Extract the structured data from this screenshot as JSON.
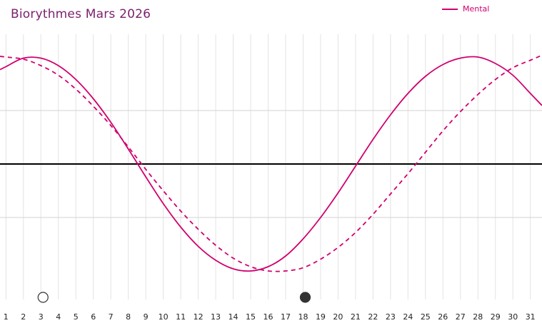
{
  "chart_data": {
    "type": "line",
    "title": "Biorythmes Mars 2026",
    "x": [
      1,
      2,
      3,
      4,
      5,
      6,
      7,
      8,
      9,
      10,
      11,
      12,
      13,
      14,
      15,
      16,
      17,
      18,
      19,
      20,
      21,
      22,
      23,
      24,
      25,
      26,
      27,
      28,
      29,
      30,
      31
    ],
    "x_tick_labels": [
      "1",
      "2",
      "3",
      "4",
      "5",
      "6",
      "7",
      "8",
      "9",
      "10",
      "11",
      "12",
      "13",
      "14",
      "15",
      "16",
      "17",
      "18",
      "19",
      "20",
      "21",
      "22",
      "23",
      "24",
      "25",
      "26",
      "27",
      "28",
      "29",
      "30",
      "31"
    ],
    "ylim": [
      -1.05,
      1.05
    ],
    "grid": true,
    "legend_position": "top-right",
    "series": [
      {
        "name": "Mental",
        "style": "solid",
        "color": "#d0006f",
        "values": [
          0.91,
          0.99,
          0.99,
          0.92,
          0.79,
          0.61,
          0.39,
          0.14,
          -0.12,
          -0.37,
          -0.59,
          -0.77,
          -0.9,
          -0.98,
          -1.0,
          -0.96,
          -0.86,
          -0.7,
          -0.5,
          -0.27,
          -0.02,
          0.23,
          0.46,
          0.66,
          0.82,
          0.93,
          0.99,
          1.0,
          0.94,
          0.83,
          0.66
        ]
      },
      {
        "style": "dashed",
        "color": "#d0006f",
        "values": [
          1.0,
          0.98,
          0.92,
          0.83,
          0.7,
          0.54,
          0.36,
          0.16,
          -0.05,
          -0.25,
          -0.44,
          -0.61,
          -0.76,
          -0.88,
          -0.96,
          -1.0,
          -1.0,
          -0.97,
          -0.89,
          -0.78,
          -0.64,
          -0.47,
          -0.28,
          -0.09,
          0.11,
          0.31,
          0.49,
          0.65,
          0.79,
          0.9,
          0.97
        ]
      }
    ],
    "markers": [
      {
        "type": "new-moon",
        "day": 3,
        "fill": "#ffffff"
      },
      {
        "type": "full-moon",
        "day": 18,
        "fill": "#333333"
      }
    ],
    "colors": {
      "line": "#d0006f",
      "title": "#7b1f6e",
      "zero_line": "#000000",
      "grid": "#dddddd"
    }
  }
}
